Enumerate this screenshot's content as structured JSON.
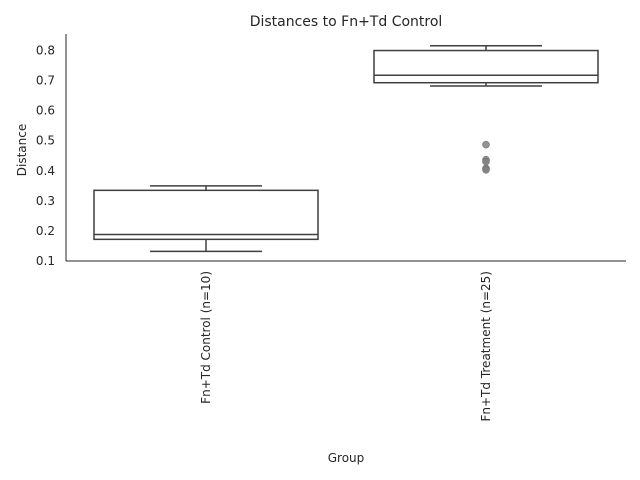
{
  "chart_data": {
    "type": "box",
    "title": "Distances to Fn+Td Control",
    "xlabel": "Group",
    "ylabel": "Distance",
    "ylim": [
      0.1,
      0.855
    ],
    "yticks": [
      0.1,
      0.2,
      0.3,
      0.4,
      0.5,
      0.6,
      0.7,
      0.8
    ],
    "grid": false,
    "categories": [
      "Fn+Td Control (n=10)",
      "Fn+Td Treatment (n=25)"
    ],
    "boxes": [
      {
        "whisker_low": 0.132,
        "q1": 0.172,
        "median": 0.188,
        "q3": 0.335,
        "whisker_high": 0.35,
        "outliers": []
      },
      {
        "whisker_low": 0.682,
        "q1": 0.693,
        "median": 0.718,
        "q3": 0.8,
        "whisker_high": 0.816,
        "outliers": [
          0.487,
          0.437,
          0.43,
          0.408,
          0.403
        ]
      }
    ],
    "colors": {
      "line": "#3f3f3f",
      "outlier": "#7f7f7f",
      "box_fill": "#ffffff"
    }
  }
}
